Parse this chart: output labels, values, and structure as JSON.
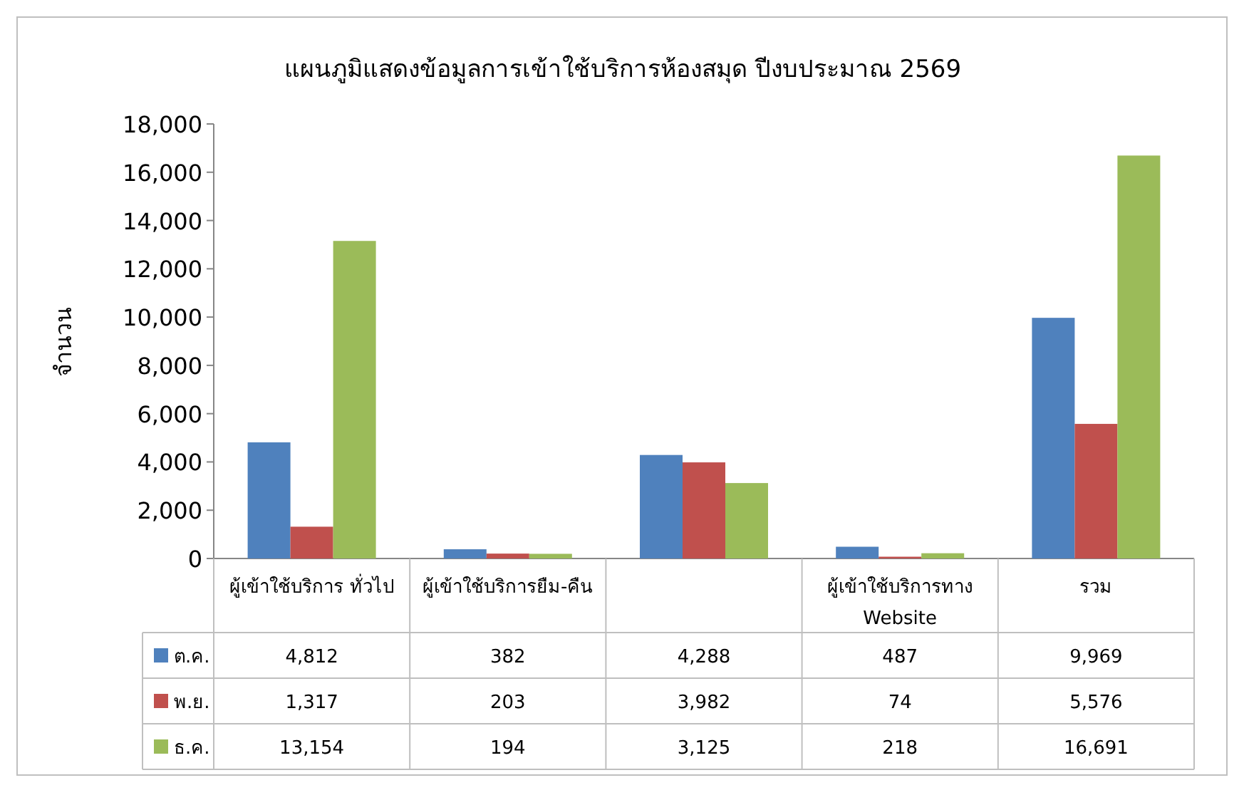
{
  "chart_data": {
    "type": "bar",
    "title": "แผนภูมิแสดงข้อมูลการเข้าใช้บริการห้องสมุด ปีงบประมาณ 2569",
    "ylabel": "จำนวน",
    "categories": [
      "ผู้เข้าใช้บริการ ทั่วไป",
      "ผู้เข้าใช้บริการยืม-คืน",
      null,
      "ผู้เข้าใช้บริการทาง Website",
      "รวม"
    ],
    "series": [
      {
        "name": "ต.ค.",
        "color": "#4f81bd",
        "values": [
          4812,
          382,
          4288,
          487,
          9969
        ],
        "value_labels": [
          "4,812",
          "382",
          "4,288",
          "487",
          "9,969"
        ]
      },
      {
        "name": "พ.ย.",
        "color": "#c0504d",
        "values": [
          1317,
          203,
          3982,
          74,
          5576
        ],
        "value_labels": [
          "1,317",
          "203",
          "3,982",
          "74",
          "5,576"
        ]
      },
      {
        "name": "ธ.ค.",
        "color": "#9bbb59",
        "values": [
          13154,
          194,
          3125,
          218,
          16691
        ],
        "value_labels": [
          "13,154",
          "194",
          "3,125",
          "218",
          "16,691"
        ]
      }
    ],
    "ylim": [
      0,
      18000
    ],
    "yticks": [
      0,
      {
        "value": 2000,
        "label": "2,000"
      },
      {
        "value": 4000,
        "label": "4,000"
      },
      {
        "value": 6000,
        "label": "6,000"
      },
      {
        "value": 8000,
        "label": "8,000"
      },
      {
        "value": 10000,
        "label": "10,000"
      },
      {
        "value": 12000,
        "label": "12,000"
      },
      {
        "value": 14000,
        "label": "14,000"
      },
      {
        "value": 16000,
        "label": "16,000"
      },
      {
        "value": 18000,
        "label": "18,000"
      }
    ],
    "grid": false,
    "legend": "bottom"
  }
}
